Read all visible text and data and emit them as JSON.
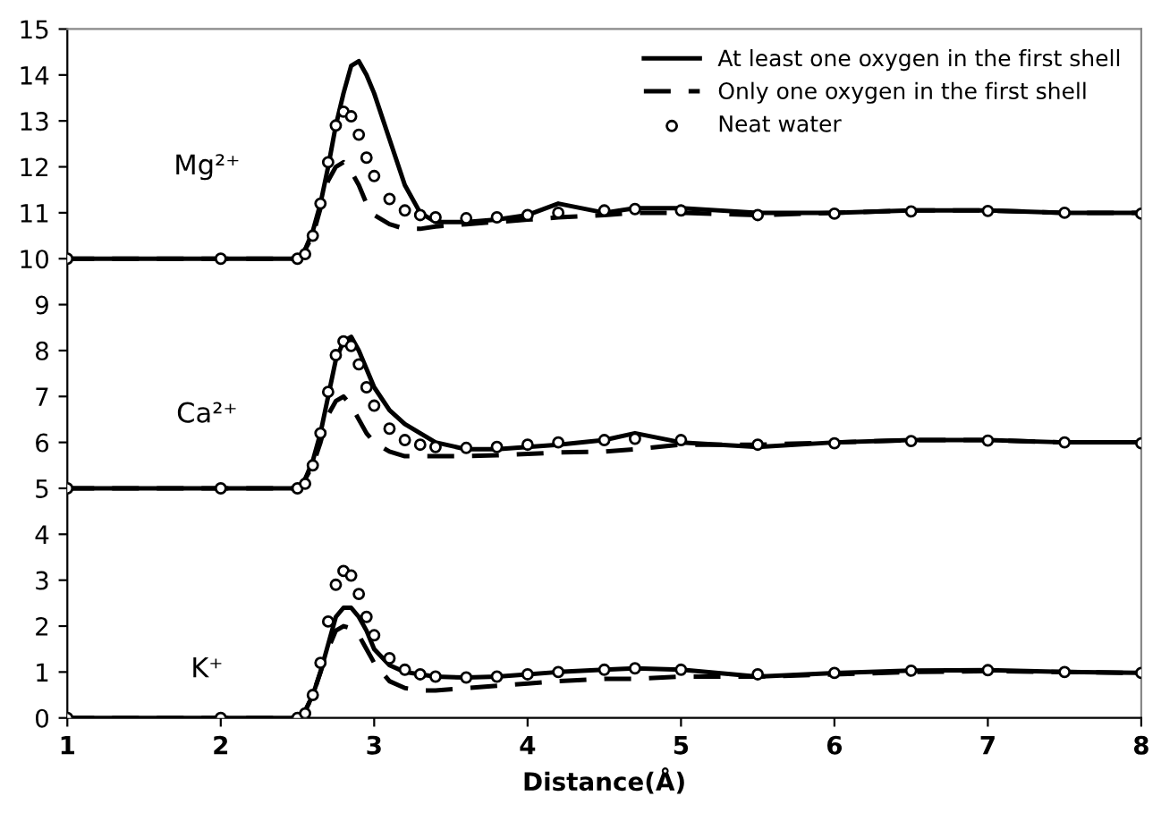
{
  "chart_data": {
    "type": "line",
    "xlabel": "Distance(Å)",
    "x": [
      1,
      2,
      2.5,
      2.55,
      2.6,
      2.65,
      2.7,
      2.75,
      2.8,
      2.85,
      2.9,
      2.95,
      3.0,
      3.1,
      3.2,
      3.3,
      3.4,
      3.6,
      3.8,
      4.0,
      4.2,
      4.5,
      4.7,
      5.0,
      5.5,
      6.0,
      6.5,
      7.0,
      7.5,
      8.0
    ],
    "series": [
      {
        "name": "At least one oxygen in the first shell",
        "color": "#000000",
        "line_style": "solid",
        "values": [
          10,
          10,
          10,
          10.2,
          10.6,
          11.2,
          12.0,
          12.9,
          13.6,
          14.2,
          14.3,
          14.0,
          13.6,
          12.6,
          11.6,
          11.0,
          10.8,
          10.8,
          10.85,
          10.95,
          11.2,
          11.0,
          11.1,
          11.1,
          11.0,
          11.0,
          11.05,
          11.05,
          11.0,
          11.0
        ]
      },
      {
        "name": "Only one oxygen in the first shell",
        "color": "#000000",
        "line_style": "dashed",
        "values": [
          10,
          10,
          10,
          10.2,
          10.5,
          11.1,
          11.7,
          12.0,
          12.1,
          11.9,
          11.6,
          11.2,
          10.95,
          10.75,
          10.65,
          10.65,
          10.7,
          10.75,
          10.8,
          10.85,
          10.9,
          10.95,
          11.0,
          11.0,
          10.95,
          11.0,
          11.05,
          11.05,
          11.0,
          11.0
        ]
      },
      {
        "name": "Neat water",
        "type": "scatter",
        "color": "#000000",
        "marker": "circle",
        "values": [
          10,
          10,
          10,
          10.1,
          10.5,
          11.2,
          12.1,
          12.9,
          13.2,
          13.1,
          12.7,
          12.2,
          11.8,
          11.3,
          11.05,
          10.95,
          10.9,
          10.88,
          10.9,
          10.95,
          11.0,
          11.05,
          11.08,
          11.05,
          10.95,
          10.98,
          11.03,
          11.04,
          11.0,
          10.98
        ]
      },
      {
        "color": "#000000",
        "line_style": "solid",
        "values": [
          5,
          5,
          5,
          5.2,
          5.6,
          6.2,
          7.0,
          7.8,
          8.2,
          8.3,
          8.0,
          7.6,
          7.2,
          6.7,
          6.4,
          6.2,
          6.0,
          5.85,
          5.85,
          5.9,
          5.95,
          6.05,
          6.2,
          6.0,
          5.9,
          6.0,
          6.05,
          6.05,
          6.0,
          6.0
        ]
      },
      {
        "color": "#000000",
        "line_style": "dashed",
        "values": [
          5,
          5,
          5,
          5.2,
          5.5,
          6.0,
          6.6,
          6.9,
          7.0,
          6.8,
          6.5,
          6.2,
          6.0,
          5.8,
          5.7,
          5.7,
          5.7,
          5.7,
          5.72,
          5.75,
          5.78,
          5.8,
          5.85,
          5.95,
          5.95,
          6.0,
          6.05,
          6.05,
          6.0,
          6.0
        ]
      },
      {
        "type": "scatter",
        "color": "#000000",
        "marker": "circle",
        "values": [
          5,
          5,
          5,
          5.1,
          5.5,
          6.2,
          7.1,
          7.9,
          8.2,
          8.1,
          7.7,
          7.2,
          6.8,
          6.3,
          6.05,
          5.95,
          5.9,
          5.88,
          5.9,
          5.95,
          6.0,
          6.05,
          6.08,
          6.05,
          5.95,
          5.98,
          6.03,
          6.04,
          6.0,
          5.98
        ]
      },
      {
        "color": "#000000",
        "line_style": "solid",
        "values": [
          0,
          0,
          0,
          0.15,
          0.5,
          1.0,
          1.6,
          2.2,
          2.4,
          2.4,
          2.2,
          1.9,
          1.5,
          1.15,
          1.0,
          0.95,
          0.9,
          0.88,
          0.9,
          0.95,
          1.0,
          1.05,
          1.08,
          1.05,
          0.9,
          0.98,
          1.03,
          1.04,
          1.0,
          0.98
        ]
      },
      {
        "color": "#000000",
        "line_style": "dashed",
        "values": [
          0,
          0,
          0,
          0.15,
          0.5,
          1.0,
          1.5,
          1.9,
          2.0,
          1.95,
          1.8,
          1.5,
          1.2,
          0.8,
          0.65,
          0.6,
          0.6,
          0.65,
          0.7,
          0.75,
          0.8,
          0.85,
          0.85,
          0.9,
          0.9,
          0.95,
          1.0,
          1.02,
          1.0,
          0.98
        ]
      },
      {
        "type": "scatter",
        "color": "#000000",
        "marker": "circle",
        "values": [
          0,
          0,
          0,
          0.1,
          0.5,
          1.2,
          2.1,
          2.9,
          3.2,
          3.1,
          2.7,
          2.2,
          1.8,
          1.3,
          1.05,
          0.95,
          0.9,
          0.88,
          0.9,
          0.95,
          1.0,
          1.05,
          1.08,
          1.05,
          0.95,
          0.98,
          1.03,
          1.04,
          1.0,
          0.98
        ]
      }
    ],
    "annotations": [
      "Mg²⁺",
      "Ca²⁺",
      "K⁺"
    ],
    "xlim": [
      1,
      8
    ],
    "xticks": [
      1,
      2,
      3,
      4,
      5,
      6,
      7,
      8
    ],
    "ylim": [
      0,
      15
    ],
    "yticks": [
      0,
      1,
      2,
      3,
      4,
      5,
      6,
      7,
      8,
      9,
      10,
      11,
      12,
      13,
      14,
      15
    ],
    "legend": "top right"
  }
}
